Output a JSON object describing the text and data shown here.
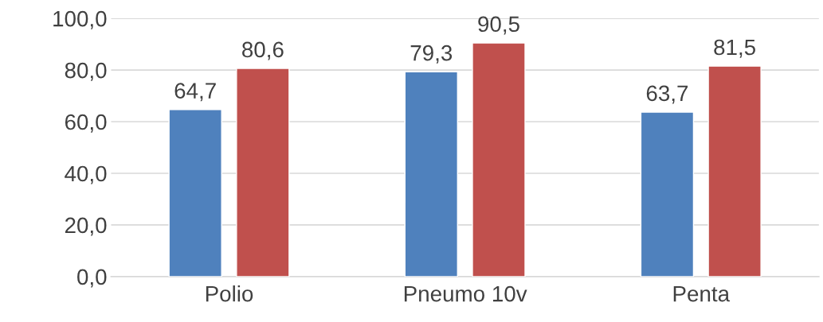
{
  "chart_data": {
    "type": "bar",
    "categories": [
      "Polio",
      "Pneumo 10v",
      "Penta"
    ],
    "series": [
      {
        "color": "#4f81bd",
        "values": [
          64.7,
          79.3,
          63.7
        ],
        "value_labels": [
          "64,7",
          "79,3",
          "63,7"
        ]
      },
      {
        "color": "#c0504d",
        "values": [
          80.6,
          90.5,
          81.5
        ],
        "value_labels": [
          "80,6",
          "90,5",
          "81,5"
        ]
      }
    ],
    "ylim": [
      0,
      100
    ],
    "yticks": [
      {
        "value": 0,
        "label": "0,0"
      },
      {
        "value": 20,
        "label": "20,0"
      },
      {
        "value": 40,
        "label": "40,0"
      },
      {
        "value": 60,
        "label": "60,0"
      },
      {
        "value": 80,
        "label": "80,0"
      },
      {
        "value": 100,
        "label": "100,0"
      }
    ],
    "grid": "y"
  }
}
